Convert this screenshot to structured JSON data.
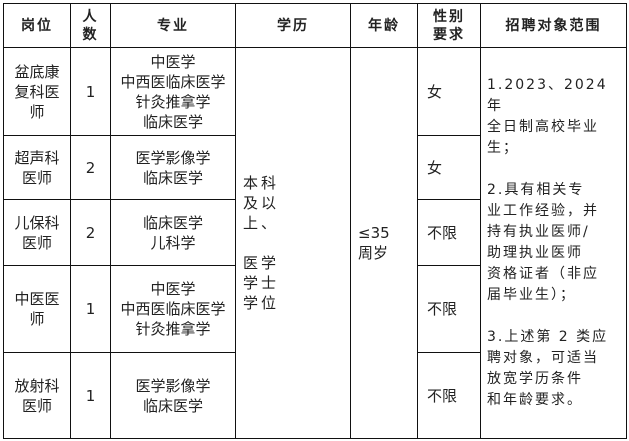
{
  "headers": [
    "岗位",
    "人\n数",
    "专业",
    "学历",
    "年龄",
    "性别\n要求",
    "招聘对象范围"
  ],
  "rows": [
    {
      "position": "盆底康\n复科医\n师",
      "count": "1",
      "major": "中医学\n中西医临床医学\n针灸推拿学\n临床医学",
      "gender": "女"
    },
    {
      "position": "超声科\n医师",
      "count": "2",
      "major": "医学影像学\n临床医学",
      "gender": "女"
    },
    {
      "position": "儿保科\n医师",
      "count": "2",
      "major": "临床医学\n儿科学",
      "gender": "不限"
    },
    {
      "position": "中医医\n师",
      "count": "1",
      "major": "中医学\n中西医临床医学\n针灸推拿学",
      "gender": "不限"
    },
    {
      "position": "放射科\n医师",
      "count": "1",
      "major": "医学影像学\n临床医学",
      "gender": "不限"
    }
  ],
  "education": "本科\n及以\n上、\n\n医学\n学士\n学位",
  "age": "≤35\n周岁",
  "scope": "1.2023、2024 年\n全日制高校毕业\n生；\n\n2.具有相关专\n业工作经验，并\n持有执业医师/\n助理执业医师\n资格证者（非应\n届毕业生）；\n\n3.上述第 2 类应\n聘对象，可适当\n放宽学历条件\n和年龄要求。"
}
